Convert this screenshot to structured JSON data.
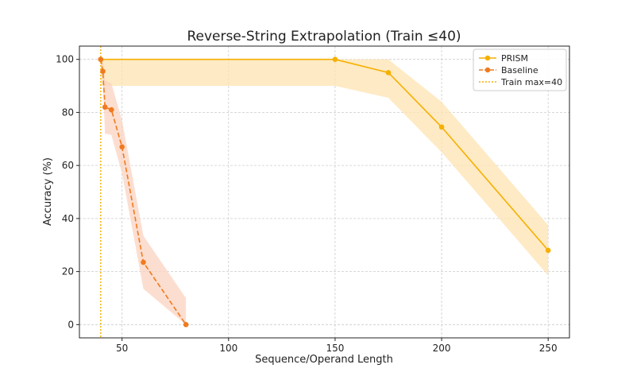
{
  "chart_data": {
    "type": "line",
    "title": "Reverse-String Extrapolation (Train ≤40)",
    "xlabel": "Sequence/Operand Length",
    "ylabel": "Accuracy (%)",
    "xlim": [
      30,
      260
    ],
    "ylim": [
      -5,
      105
    ],
    "xticks": [
      50,
      100,
      150,
      200,
      250
    ],
    "yticks": [
      0,
      20,
      40,
      60,
      80,
      100
    ],
    "grid": true,
    "legend_position": "top-right",
    "series": [
      {
        "name": "PRISM",
        "color": "#f5b000",
        "band_color": "#fde3b0",
        "line_style": "solid",
        "x": [
          40,
          150,
          175,
          200,
          250
        ],
        "values": [
          100,
          100,
          95,
          74.5,
          28
        ],
        "band_lower": [
          90,
          90,
          85.5,
          65,
          18.5
        ],
        "band_upper": [
          100,
          100,
          100,
          84,
          37.5
        ]
      },
      {
        "name": "Baseline",
        "color": "#f07a1e",
        "band_color": "#fbd3c0",
        "line_style": "dashed",
        "x": [
          40,
          41,
          42,
          45,
          50,
          60,
          80
        ],
        "values": [
          100,
          95.5,
          82,
          81,
          67,
          23.5,
          0
        ],
        "band_lower": [
          100,
          92,
          72,
          71.5,
          57,
          13.5,
          0
        ],
        "band_upper": [
          100,
          100,
          92,
          91,
          77,
          33.5,
          10
        ]
      }
    ],
    "reference_lines": [
      {
        "name": "Train max=40",
        "x": 40,
        "color": "#f5b000",
        "line_style": "dotted"
      }
    ]
  }
}
